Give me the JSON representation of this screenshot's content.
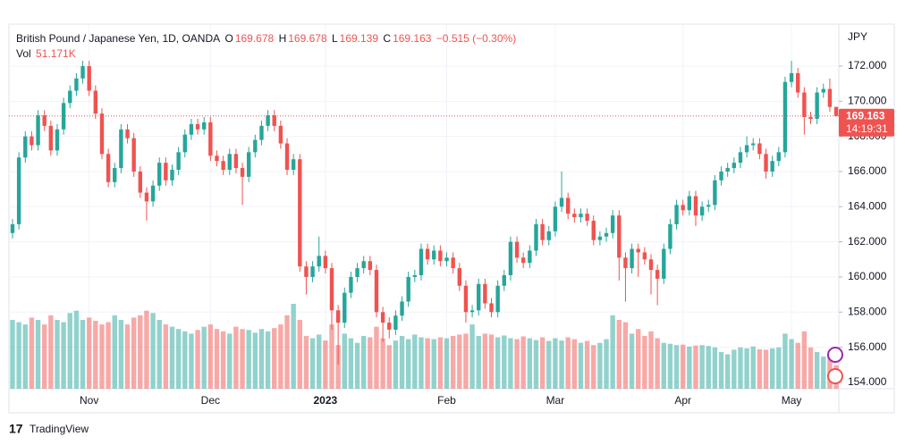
{
  "chart_data": {
    "type": "candlestick",
    "symbol": "British Pound / Japanese Yen, 1D, OANDA",
    "ohlc_letters": [
      "O",
      "H",
      "L",
      "C"
    ],
    "change_label": "−0.515 (−0.30%)",
    "volume_title": "Vol",
    "volume_label": "51.171K",
    "currency": "JPY",
    "countdown": "14:19:31",
    "brand": "TradingView",
    "up_color": "#26a69a",
    "down_color": "#ef5350",
    "ylim": [
      153.64,
      174.34
    ],
    "yticks": [
      {
        "value": 154,
        "label": "154.000"
      },
      {
        "value": 156,
        "label": "156.000"
      },
      {
        "value": 158,
        "label": "158.000"
      },
      {
        "value": 160,
        "label": "160.000"
      },
      {
        "value": 162,
        "label": "162.000"
      },
      {
        "value": 164,
        "label": "164.000"
      },
      {
        "value": 166,
        "label": "166.000"
      },
      {
        "value": 168,
        "label": "168.000"
      },
      {
        "value": 170,
        "label": "170.000"
      },
      {
        "value": 172,
        "label": "172.000"
      }
    ],
    "grid": true,
    "categories": [
      null,
      null,
      null,
      null,
      null,
      null,
      null,
      null,
      null,
      null,
      null,
      null,
      "Nov",
      null,
      null,
      null,
      null,
      null,
      null,
      null,
      null,
      null,
      null,
      null,
      null,
      null,
      null,
      null,
      null,
      null,
      null,
      "Dec",
      null,
      null,
      null,
      null,
      null,
      null,
      null,
      null,
      null,
      null,
      null,
      null,
      null,
      null,
      null,
      null,
      null,
      "2023",
      null,
      null,
      null,
      null,
      null,
      null,
      null,
      null,
      null,
      null,
      null,
      null,
      null,
      null,
      null,
      null,
      null,
      null,
      "Feb",
      null,
      null,
      null,
      null,
      null,
      null,
      null,
      null,
      null,
      null,
      null,
      null,
      null,
      null,
      null,
      null,
      "Mar",
      null,
      null,
      null,
      null,
      null,
      null,
      null,
      null,
      null,
      null,
      null,
      null,
      null,
      null,
      null,
      null,
      null,
      null,
      null,
      "Apr",
      null,
      null,
      null,
      null,
      null,
      null,
      null,
      null,
      null,
      null,
      null,
      null,
      null,
      null,
      null,
      null,
      "May",
      null,
      null,
      null,
      null,
      null,
      null,
      null
    ],
    "open": [
      162.5,
      163.0,
      166.8,
      168.0,
      167.5,
      169.2,
      168.6,
      167.2,
      168.4,
      169.9,
      170.6,
      171.3,
      172.0,
      170.6,
      169.3,
      167.0,
      165.4,
      166.2,
      168.4,
      167.9,
      166.0,
      164.8,
      164.3,
      165.2,
      166.5,
      165.5,
      166.1,
      167.1,
      168.1,
      168.7,
      168.4,
      168.8,
      166.9,
      166.6,
      166.1,
      167.0,
      166.2,
      165.7,
      167.1,
      167.8,
      168.6,
      169.2,
      168.6,
      167.6,
      166.1,
      166.7,
      160.6,
      160.0,
      160.6,
      161.2,
      160.5,
      158.1,
      157.4,
      159.1,
      160.0,
      160.5,
      160.9,
      160.4,
      158.0,
      157.4,
      157.0,
      157.8,
      158.6,
      160.0,
      160.1,
      161.6,
      161.0,
      161.5,
      160.9,
      161.1,
      160.5,
      159.5,
      158.0,
      158.1,
      159.6,
      158.5,
      158.0,
      159.5,
      160.1,
      162.0,
      161.1,
      160.8,
      161.5,
      163.0,
      162.1,
      162.6,
      164.0,
      164.5,
      163.6,
      163.4,
      163.6,
      163.2,
      162.1,
      162.3,
      162.5,
      163.5,
      161.1,
      160.5,
      161.6,
      161.4,
      161.0,
      160.4,
      159.9,
      161.6,
      163.0,
      164.1,
      163.8,
      164.6,
      163.5,
      164.0,
      164.1,
      165.5,
      166.0,
      166.2,
      166.5,
      167.1,
      167.5,
      167.6,
      167.0,
      166.0,
      166.6,
      167.1,
      171.1,
      171.6,
      170.5,
      169.1,
      169.0,
      170.5,
      170.7,
      169.678
    ],
    "high": [
      163.3,
      167.1,
      168.3,
      168.3,
      169.5,
      169.5,
      168.9,
      168.7,
      170.2,
      170.9,
      171.6,
      172.3,
      172.3,
      170.9,
      169.6,
      167.3,
      166.5,
      168.7,
      168.7,
      168.2,
      166.3,
      165.1,
      165.5,
      166.8,
      166.8,
      166.4,
      167.4,
      168.4,
      169.0,
      169.0,
      169.1,
      169.1,
      167.2,
      166.9,
      167.3,
      167.3,
      166.5,
      167.4,
      168.1,
      168.9,
      169.5,
      169.5,
      168.9,
      167.9,
      167.0,
      167.0,
      160.9,
      160.9,
      162.3,
      161.5,
      160.8,
      158.4,
      159.4,
      160.3,
      160.8,
      161.2,
      161.2,
      160.7,
      158.3,
      157.7,
      158.1,
      158.9,
      160.3,
      160.4,
      161.9,
      161.9,
      161.8,
      161.8,
      161.4,
      161.4,
      160.8,
      159.8,
      158.4,
      159.9,
      159.9,
      158.8,
      159.8,
      160.4,
      162.3,
      162.3,
      161.4,
      161.8,
      163.3,
      163.3,
      162.9,
      164.3,
      166.0,
      164.8,
      163.9,
      163.9,
      163.9,
      163.5,
      162.6,
      162.8,
      163.8,
      163.8,
      161.4,
      161.9,
      161.9,
      161.7,
      161.3,
      160.7,
      161.9,
      163.3,
      164.4,
      164.4,
      164.9,
      164.9,
      164.3,
      164.4,
      165.8,
      166.3,
      166.5,
      166.8,
      167.4,
      168.0,
      167.9,
      167.9,
      167.3,
      166.9,
      167.4,
      171.4,
      172.3,
      171.9,
      170.8,
      169.4,
      170.8,
      171.0,
      171.3,
      169.678
    ],
    "low": [
      162.2,
      162.7,
      166.5,
      167.2,
      167.2,
      168.3,
      166.9,
      166.9,
      168.1,
      169.6,
      170.3,
      171.0,
      170.3,
      169.0,
      166.7,
      165.1,
      165.1,
      165.9,
      167.6,
      165.7,
      164.5,
      163.2,
      164.0,
      164.9,
      165.2,
      165.2,
      165.8,
      166.8,
      167.8,
      168.1,
      168.1,
      166.6,
      166.3,
      165.8,
      165.8,
      165.9,
      164.1,
      165.4,
      166.8,
      167.5,
      168.3,
      168.3,
      167.3,
      165.8,
      165.8,
      160.3,
      159.0,
      159.7,
      160.3,
      160.2,
      157.0,
      155.0,
      157.1,
      158.8,
      159.7,
      160.2,
      160.1,
      157.7,
      156.3,
      156.5,
      156.7,
      157.5,
      158.3,
      159.7,
      159.8,
      160.7,
      160.7,
      160.6,
      160.6,
      160.2,
      159.2,
      157.4,
      157.7,
      157.8,
      158.2,
      157.7,
      157.7,
      159.2,
      159.8,
      160.8,
      160.5,
      160.5,
      161.2,
      161.8,
      161.8,
      162.3,
      163.7,
      163.3,
      163.1,
      163.1,
      162.9,
      161.8,
      161.8,
      162.0,
      162.2,
      159.8,
      158.6,
      160.2,
      160.0,
      160.7,
      159.0,
      158.4,
      159.6,
      161.3,
      162.7,
      163.5,
      163.5,
      162.9,
      163.2,
      163.7,
      163.8,
      165.2,
      165.7,
      165.9,
      166.2,
      166.8,
      167.2,
      166.7,
      165.6,
      165.7,
      166.3,
      166.8,
      170.8,
      170.2,
      168.1,
      168.7,
      168.7,
      170.2,
      169.4,
      169.139
    ],
    "close": [
      163.0,
      166.8,
      168.0,
      167.5,
      169.2,
      168.6,
      167.2,
      168.4,
      169.9,
      170.6,
      171.3,
      172.0,
      170.6,
      169.3,
      167.0,
      165.4,
      166.2,
      168.4,
      167.9,
      166.0,
      164.8,
      164.3,
      165.2,
      166.5,
      165.5,
      166.1,
      167.1,
      168.1,
      168.7,
      168.4,
      168.8,
      166.9,
      166.6,
      166.1,
      167.0,
      166.2,
      165.7,
      167.1,
      167.8,
      168.6,
      169.2,
      168.6,
      167.6,
      166.1,
      166.7,
      160.6,
      160.0,
      160.6,
      161.2,
      160.5,
      158.1,
      157.4,
      159.1,
      160.0,
      160.5,
      160.9,
      160.4,
      158.0,
      157.4,
      157.0,
      157.8,
      158.6,
      160.0,
      160.1,
      161.6,
      161.0,
      161.5,
      160.9,
      161.1,
      160.5,
      159.5,
      158.0,
      158.1,
      159.6,
      158.5,
      158.0,
      159.5,
      160.1,
      162.0,
      161.1,
      160.8,
      161.5,
      163.0,
      162.1,
      162.6,
      164.0,
      164.5,
      163.6,
      163.4,
      163.6,
      163.2,
      162.1,
      162.3,
      162.5,
      163.5,
      161.1,
      160.5,
      161.6,
      161.4,
      161.0,
      160.4,
      159.9,
      161.6,
      163.0,
      164.1,
      163.8,
      164.6,
      163.5,
      164.0,
      164.1,
      165.5,
      166.0,
      166.2,
      166.5,
      167.1,
      167.5,
      167.6,
      167.0,
      166.0,
      166.6,
      167.1,
      171.1,
      171.6,
      170.5,
      169.1,
      169.0,
      170.5,
      170.7,
      169.678,
      169.163
    ],
    "volume": [
      150000,
      145000,
      140000,
      155000,
      150000,
      140000,
      160000,
      150000,
      145000,
      165000,
      170000,
      150000,
      155000,
      148000,
      140000,
      145000,
      160000,
      150000,
      140000,
      155000,
      160000,
      170000,
      165000,
      150000,
      140000,
      135000,
      130000,
      125000,
      120000,
      128000,
      135000,
      140000,
      130000,
      125000,
      120000,
      135000,
      130000,
      128000,
      122000,
      130000,
      125000,
      132000,
      140000,
      160000,
      185000,
      150000,
      115000,
      110000,
      118000,
      105000,
      140000,
      95000,
      120000,
      110000,
      100000,
      115000,
      112000,
      135000,
      110000,
      95000,
      105000,
      115000,
      108000,
      118000,
      112000,
      110000,
      108000,
      112000,
      110000,
      115000,
      118000,
      120000,
      140000,
      115000,
      120000,
      118000,
      112000,
      116000,
      110000,
      108000,
      114000,
      110000,
      106000,
      112000,
      104000,
      110000,
      105000,
      112000,
      108000,
      100000,
      104000,
      95000,
      100000,
      108000,
      160000,
      150000,
      145000,
      120000,
      130000,
      115000,
      125000,
      110000,
      100000,
      98000,
      95000,
      96000,
      92000,
      94000,
      95000,
      93000,
      90000,
      80000,
      75000,
      85000,
      90000,
      88000,
      92000,
      86000,
      85000,
      88000,
      90000,
      120000,
      108000,
      100000,
      125000,
      90000,
      80000,
      70000,
      75000,
      51171
    ]
  }
}
